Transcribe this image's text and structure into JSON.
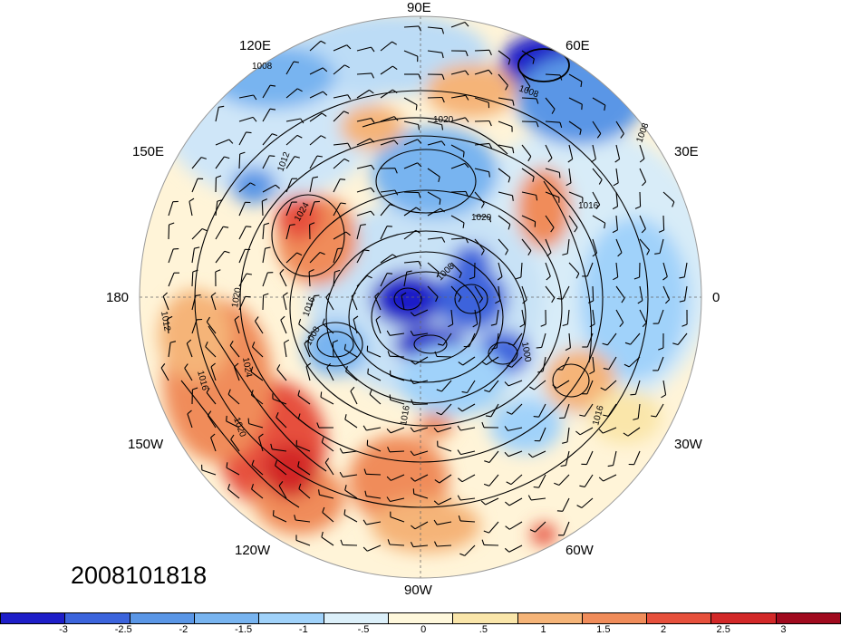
{
  "title": "",
  "timestamp": "2008101818",
  "longitude_labels": {
    "deg90E": "90E",
    "deg120E": "120E",
    "deg60E": "60E",
    "deg150E": "150E",
    "deg30E": "30E",
    "deg180": "180",
    "deg0": "0",
    "deg150W": "150W",
    "deg30W": "30W",
    "deg120W": "120W",
    "deg60W": "60W",
    "deg90W": "90W"
  },
  "contour_labels": [
    "1008",
    "1008",
    "1008",
    "1012",
    "1012",
    "1016",
    "1016",
    "1016",
    "1020",
    "1020",
    "1020",
    "1024",
    "1024",
    "1020",
    "1016",
    "1016",
    "1008",
    "1000",
    "1008"
  ],
  "colorbar": {
    "colors": [
      "#1e1ec8",
      "#3c64dc",
      "#5a96e6",
      "#78b4f0",
      "#a0d2fa",
      "#dcf0fa",
      "#fff8dc",
      "#fae6aa",
      "#f5b478",
      "#f08c5a",
      "#e6503c",
      "#d22828",
      "#a00a1e"
    ],
    "tick_labels": [
      "-3",
      "-2.5",
      "-2",
      "-1.5",
      "-1",
      "-.5",
      "0",
      ".5",
      "1",
      "1.5",
      "2",
      "2.5",
      "3"
    ]
  },
  "icons": {
    "wind_barbs": "wind-barb-icon",
    "coastlines": "coastline-icon"
  }
}
